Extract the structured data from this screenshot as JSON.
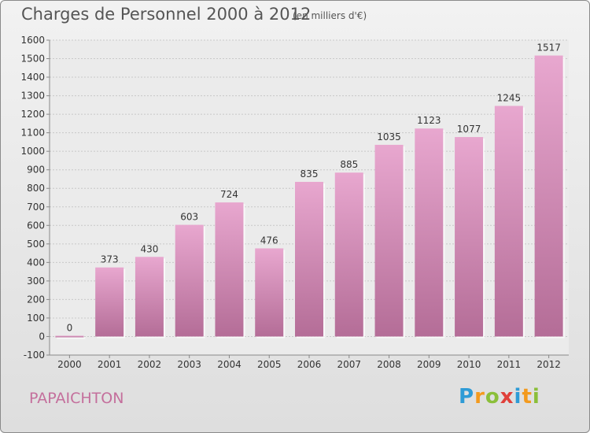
{
  "header": {
    "title": "Charges de Personnel 2000 à 2012",
    "subtitle": "(en milliers d'€)"
  },
  "footer": {
    "place": "PAPAICHTON",
    "logo_letters": [
      "P",
      "r",
      "o",
      "x",
      "i",
      "t",
      "i"
    ],
    "logo_colors": [
      "#2e9bd6",
      "#f39a1e",
      "#8bbf3a",
      "#e0403a",
      "#2e9bd6",
      "#f39a1e",
      "#8bbf3a"
    ]
  },
  "colors": {
    "bar_top": "#e8a7cf",
    "bar_bottom": "#b46d97",
    "grid": "#c8c8c8",
    "axis": "#888888"
  },
  "chart_data": {
    "type": "bar",
    "title": "Charges de Personnel 2000 à 2012",
    "subtitle": "(en milliers d'€)",
    "categories": [
      "2000",
      "2001",
      "2002",
      "2003",
      "2004",
      "2005",
      "2006",
      "2007",
      "2008",
      "2009",
      "2010",
      "2011",
      "2012"
    ],
    "values": [
      0,
      373,
      430,
      603,
      724,
      476,
      835,
      885,
      1035,
      1123,
      1077,
      1245,
      1517
    ],
    "ylim": [
      -100,
      1600
    ],
    "yticks": [
      -100,
      0,
      100,
      200,
      300,
      400,
      500,
      600,
      700,
      800,
      900,
      1000,
      1100,
      1200,
      1300,
      1400,
      1500,
      1600
    ],
    "grid": true
  }
}
